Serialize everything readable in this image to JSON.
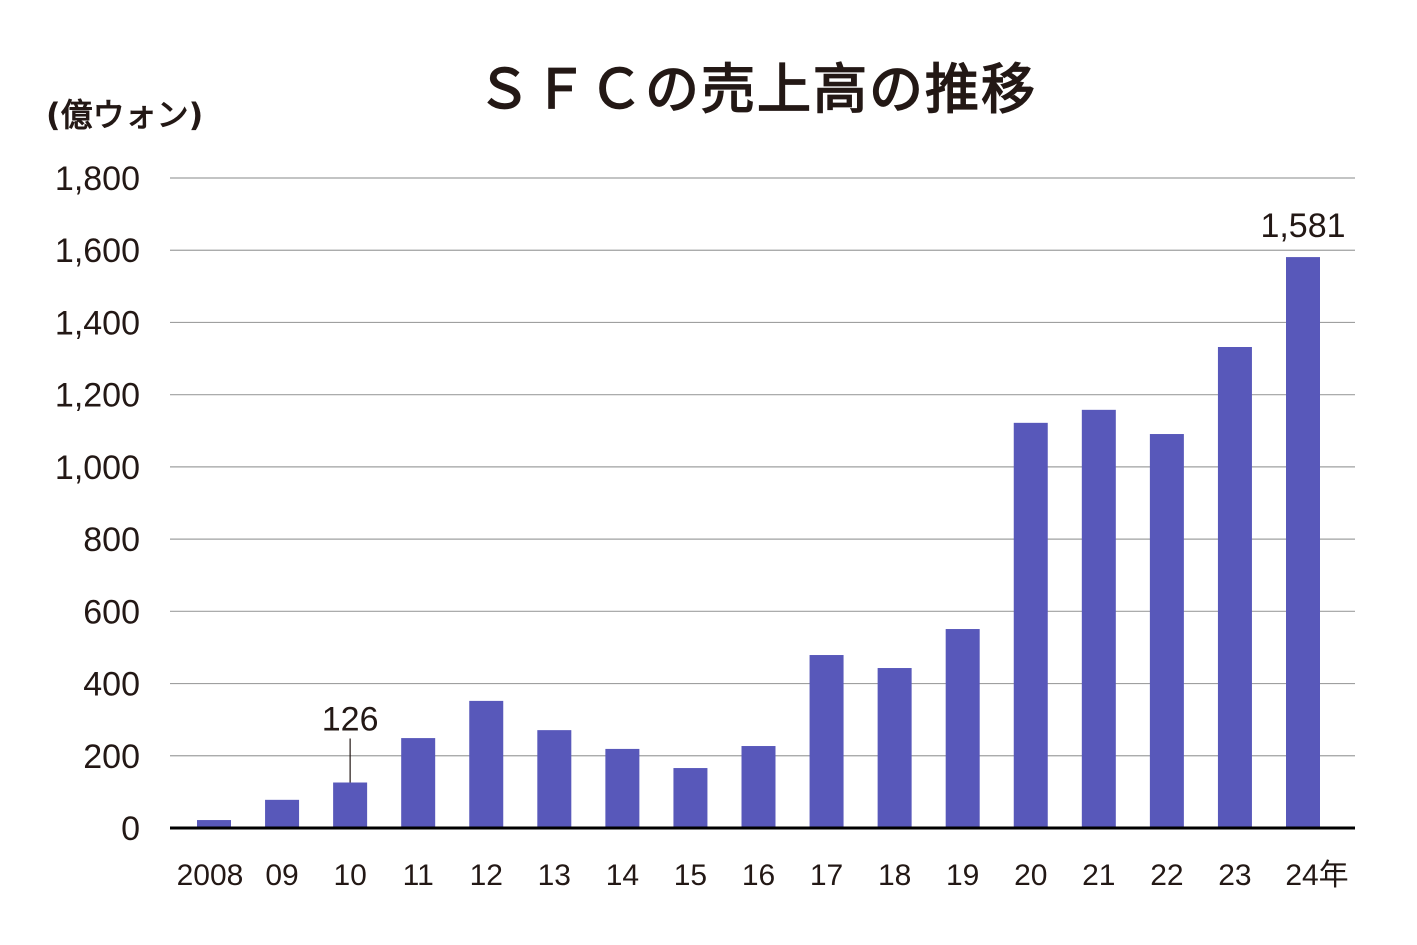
{
  "chart_data": {
    "type": "bar",
    "title": "ＳＦＣの売上高の推移",
    "ylabel": "(億ウォン)",
    "xlabel": "",
    "categories": [
      "2008",
      "09",
      "10",
      "11",
      "12",
      "13",
      "14",
      "15",
      "16",
      "17",
      "18",
      "19",
      "20",
      "21",
      "22",
      "23",
      "24年"
    ],
    "values": [
      22,
      78,
      126,
      249,
      352,
      271,
      219,
      166,
      227,
      479,
      443,
      551,
      1122,
      1158,
      1091,
      1332,
      1581
    ],
    "ylim": [
      0,
      1800
    ],
    "yticks": [
      "0",
      "200",
      "400",
      "600",
      "800",
      "1,000",
      "1,200",
      "1,400",
      "1,600",
      "1,800"
    ],
    "grid": true,
    "data_labels": [
      {
        "category": "10",
        "text": "126"
      },
      {
        "category": "24年",
        "text": "1,581"
      }
    ],
    "colors": {
      "bar": "#5858BA",
      "grid": "#9FA0A0",
      "axis": "#000000"
    }
  }
}
